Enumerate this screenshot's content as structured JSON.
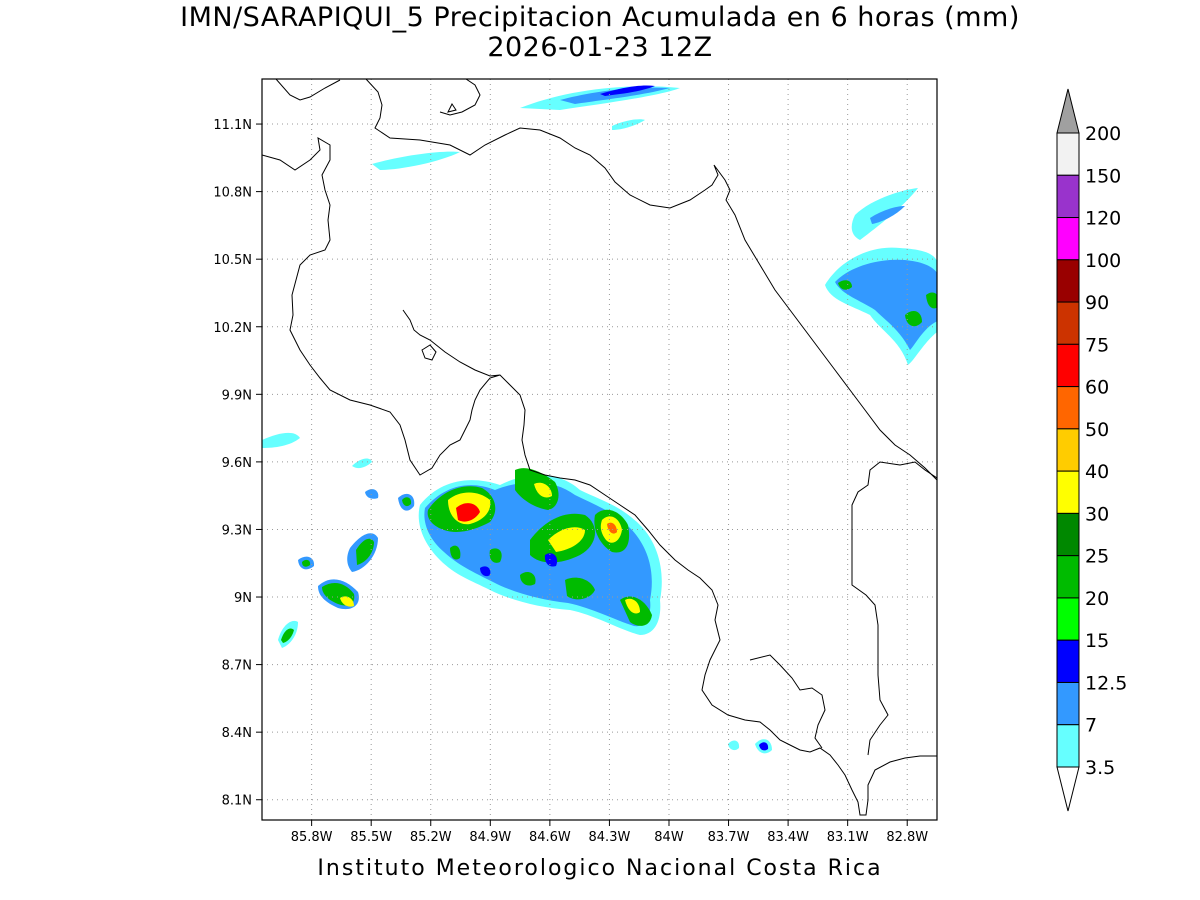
{
  "title": "IMN/SARAPIQUI_5 Precipitacion Acumulada en 6 horas (mm)",
  "subtitle": "2026-01-23 12Z",
  "footer": "Instituto Meteorologico Nacional Costa Rica",
  "map": {
    "lon_range": [
      -86.05,
      -82.65
    ],
    "lat_range": [
      8.01,
      11.3
    ],
    "lat_ticks": [
      "11.1N",
      "10.8N",
      "10.5N",
      "10.2N",
      "9.9N",
      "9.6N",
      "9.3N",
      "9N",
      "8.7N",
      "8.4N",
      "8.1N"
    ],
    "lon_ticks": [
      "85.8W",
      "85.5W",
      "85.2W",
      "84.9W",
      "84.6W",
      "84.3W",
      "84W",
      "83.7W",
      "83.4W",
      "83.1W",
      "82.8W"
    ],
    "grid": true
  },
  "colorbar": {
    "levels": [
      "200",
      "150",
      "120",
      "100",
      "90",
      "75",
      "60",
      "50",
      "40",
      "30",
      "25",
      "20",
      "15",
      "12.5",
      "7",
      "3.5"
    ],
    "colors": [
      "#f2f2f2",
      "#9933cc",
      "#ff00ff",
      "#990000",
      "#cc3300",
      "#ff0000",
      "#ff6600",
      "#ffcc00",
      "#ffff00",
      "#008800",
      "#00bb00",
      "#00ff00",
      "#0000ff",
      "#3399ff",
      "#66ffff"
    ],
    "top_arrow_color": "#a0a0a0",
    "bottom_arrow_color": "#ffffff"
  }
}
